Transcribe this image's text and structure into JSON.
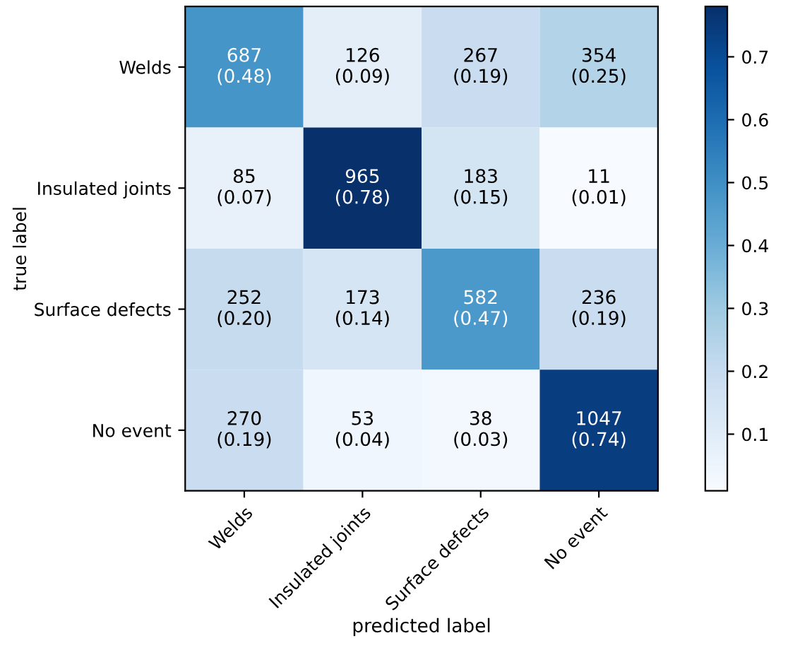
{
  "chart_data": {
    "type": "heatmap",
    "xlabel": "predicted label",
    "ylabel": "true label",
    "categories": [
      "Welds",
      "Insulated joints",
      "Surface defects",
      "No event"
    ],
    "y_categories": [
      "Welds",
      "Insulated joints",
      "Surface defects",
      "No event"
    ],
    "cells": [
      [
        0.48,
        0.09,
        0.19,
        0.25
      ],
      [
        0.07,
        0.78,
        0.15,
        0.01
      ],
      [
        0.2,
        0.14,
        0.47,
        0.19
      ],
      [
        0.19,
        0.04,
        0.03,
        0.74
      ]
    ],
    "cell_labels": [
      [
        "687\n(0.48)",
        "126\n(0.09)",
        "267\n(0.19)",
        "354\n(0.25)"
      ],
      [
        "85\n(0.07)",
        "965\n(0.78)",
        "183\n(0.15)",
        "11\n(0.01)"
      ],
      [
        "252\n(0.20)",
        "173\n(0.14)",
        "582\n(0.47)",
        "236\n(0.19)"
      ],
      [
        "270\n(0.19)",
        "53\n(0.04)",
        "38\n(0.03)",
        "1047\n(0.74)"
      ]
    ],
    "clim": [
      0.01,
      0.78
    ],
    "cticks": [
      0.1,
      0.2,
      0.3,
      0.4,
      0.5,
      0.6,
      0.7
    ]
  }
}
